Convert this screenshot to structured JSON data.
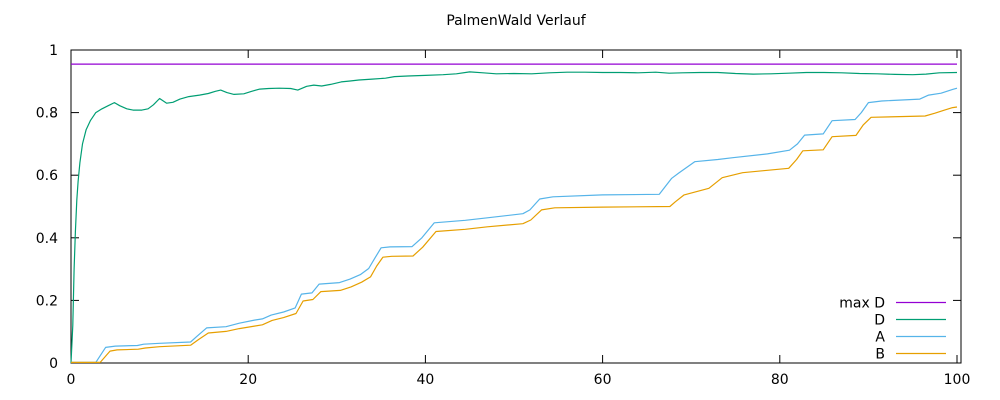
{
  "chart_data": {
    "type": "line",
    "title": "PalmenWald Verlauf",
    "xlabel": "",
    "ylabel": "",
    "xlim": [
      0,
      100
    ],
    "ylim": [
      0,
      1
    ],
    "grid": false,
    "legend_position": "inside-bottom-right",
    "background_color": "#ffffff",
    "axis_color": "#000000",
    "xticks": [
      {
        "v": 0,
        "label": "0"
      },
      {
        "v": 20,
        "label": "20"
      },
      {
        "v": 40,
        "label": "40"
      },
      {
        "v": 60,
        "label": "60"
      },
      {
        "v": 80,
        "label": "80"
      },
      {
        "v": 100,
        "label": "100"
      }
    ],
    "yticks": [
      {
        "v": 0,
        "label": "0"
      },
      {
        "v": 0.2,
        "label": "0.2"
      },
      {
        "v": 0.4,
        "label": "0.4"
      },
      {
        "v": 0.6,
        "label": "0.6"
      },
      {
        "v": 0.8,
        "label": "0.8"
      },
      {
        "v": 1,
        "label": "1"
      }
    ],
    "series": [
      {
        "name": "max D",
        "color": "#9400d3",
        "points": [
          [
            0,
            0.955
          ],
          [
            100,
            0.955
          ]
        ]
      },
      {
        "name": "D",
        "color": "#009e73",
        "points": [
          [
            0,
            0
          ],
          [
            0.2,
            0.12
          ],
          [
            0.35,
            0.3
          ],
          [
            0.5,
            0.42
          ],
          [
            0.65,
            0.52
          ],
          [
            0.8,
            0.58
          ],
          [
            1.0,
            0.64
          ],
          [
            1.3,
            0.7
          ],
          [
            1.7,
            0.745
          ],
          [
            2.2,
            0.775
          ],
          [
            2.8,
            0.8
          ],
          [
            3.5,
            0.812
          ],
          [
            4.2,
            0.822
          ],
          [
            4.9,
            0.832
          ],
          [
            5.5,
            0.822
          ],
          [
            6.3,
            0.812
          ],
          [
            7,
            0.808
          ],
          [
            8,
            0.808
          ],
          [
            8.7,
            0.812
          ],
          [
            9.3,
            0.825
          ],
          [
            10,
            0.845
          ],
          [
            10.8,
            0.83
          ],
          [
            11.5,
            0.833
          ],
          [
            12.3,
            0.843
          ],
          [
            13.3,
            0.851
          ],
          [
            14.5,
            0.856
          ],
          [
            15.5,
            0.861
          ],
          [
            16.3,
            0.868
          ],
          [
            16.9,
            0.872
          ],
          [
            17.6,
            0.864
          ],
          [
            18.4,
            0.858
          ],
          [
            19.5,
            0.86
          ],
          [
            20.4,
            0.868
          ],
          [
            21.3,
            0.875
          ],
          [
            22.3,
            0.877
          ],
          [
            23.5,
            0.878
          ],
          [
            24.8,
            0.877
          ],
          [
            25.6,
            0.872
          ],
          [
            26.6,
            0.884
          ],
          [
            27.4,
            0.888
          ],
          [
            28.3,
            0.885
          ],
          [
            29.3,
            0.89
          ],
          [
            30.5,
            0.898
          ],
          [
            31.5,
            0.901
          ],
          [
            32.5,
            0.904
          ],
          [
            34,
            0.907
          ],
          [
            35.5,
            0.91
          ],
          [
            36.5,
            0.915
          ],
          [
            38,
            0.917
          ],
          [
            40,
            0.919
          ],
          [
            42,
            0.921
          ],
          [
            43.5,
            0.924
          ],
          [
            45,
            0.93
          ],
          [
            46.5,
            0.927
          ],
          [
            48,
            0.924
          ],
          [
            50,
            0.925
          ],
          [
            52,
            0.924
          ],
          [
            54,
            0.927
          ],
          [
            56,
            0.929
          ],
          [
            58,
            0.929
          ],
          [
            60,
            0.928
          ],
          [
            62,
            0.928
          ],
          [
            64,
            0.927
          ],
          [
            66,
            0.929
          ],
          [
            67.5,
            0.926
          ],
          [
            69,
            0.927
          ],
          [
            71,
            0.928
          ],
          [
            73,
            0.928
          ],
          [
            75,
            0.925
          ],
          [
            77,
            0.923
          ],
          [
            79,
            0.924
          ],
          [
            81,
            0.926
          ],
          [
            83,
            0.928
          ],
          [
            85,
            0.928
          ],
          [
            87,
            0.927
          ],
          [
            89,
            0.925
          ],
          [
            91,
            0.924
          ],
          [
            93,
            0.922
          ],
          [
            95,
            0.921
          ],
          [
            96.5,
            0.923
          ],
          [
            98,
            0.927
          ],
          [
            100,
            0.928
          ]
        ]
      },
      {
        "name": "A",
        "color": "#56b4e9",
        "points": [
          [
            0,
            0.002
          ],
          [
            2.8,
            0.002
          ],
          [
            3.9,
            0.05
          ],
          [
            5,
            0.054
          ],
          [
            7.5,
            0.056
          ],
          [
            8.2,
            0.06
          ],
          [
            10,
            0.063
          ],
          [
            13.5,
            0.067
          ],
          [
            14.2,
            0.085
          ],
          [
            15.3,
            0.112
          ],
          [
            17.5,
            0.116
          ],
          [
            19,
            0.127
          ],
          [
            20.7,
            0.137
          ],
          [
            21.6,
            0.141
          ],
          [
            22.6,
            0.153
          ],
          [
            24,
            0.163
          ],
          [
            25.3,
            0.176
          ],
          [
            26,
            0.22
          ],
          [
            27.2,
            0.224
          ],
          [
            28,
            0.252
          ],
          [
            30.3,
            0.257
          ],
          [
            31.5,
            0.268
          ],
          [
            32.7,
            0.283
          ],
          [
            33.6,
            0.302
          ],
          [
            34.3,
            0.335
          ],
          [
            35,
            0.368
          ],
          [
            36,
            0.371
          ],
          [
            38.5,
            0.372
          ],
          [
            39.6,
            0.4
          ],
          [
            41,
            0.448
          ],
          [
            44.5,
            0.456
          ],
          [
            47,
            0.464
          ],
          [
            51,
            0.477
          ],
          [
            51.8,
            0.489
          ],
          [
            52.9,
            0.524
          ],
          [
            54.4,
            0.531
          ],
          [
            60,
            0.537
          ],
          [
            66.4,
            0.539
          ],
          [
            67.8,
            0.59
          ],
          [
            68.6,
            0.607
          ],
          [
            70.4,
            0.643
          ],
          [
            73,
            0.65
          ],
          [
            74.7,
            0.656
          ],
          [
            78.6,
            0.668
          ],
          [
            81.1,
            0.68
          ],
          [
            82,
            0.7
          ],
          [
            82.8,
            0.728
          ],
          [
            84.9,
            0.732
          ],
          [
            85.9,
            0.774
          ],
          [
            88.5,
            0.778
          ],
          [
            89.2,
            0.8
          ],
          [
            90,
            0.832
          ],
          [
            91.5,
            0.837
          ],
          [
            95.8,
            0.843
          ],
          [
            96.8,
            0.856
          ],
          [
            98.2,
            0.862
          ],
          [
            99.5,
            0.874
          ],
          [
            100,
            0.878
          ]
        ]
      },
      {
        "name": "B",
        "color": "#e69f00",
        "points": [
          [
            0,
            0.002
          ],
          [
            3.3,
            0.002
          ],
          [
            4.4,
            0.038
          ],
          [
            5.2,
            0.042
          ],
          [
            7.6,
            0.044
          ],
          [
            8.4,
            0.048
          ],
          [
            10,
            0.052
          ],
          [
            13.5,
            0.057
          ],
          [
            14.4,
            0.075
          ],
          [
            15.5,
            0.096
          ],
          [
            17.5,
            0.101
          ],
          [
            19,
            0.11
          ],
          [
            20.7,
            0.118
          ],
          [
            21.6,
            0.122
          ],
          [
            22.7,
            0.136
          ],
          [
            24,
            0.145
          ],
          [
            25.4,
            0.158
          ],
          [
            26.2,
            0.198
          ],
          [
            27.3,
            0.203
          ],
          [
            28.2,
            0.228
          ],
          [
            30.4,
            0.232
          ],
          [
            31.6,
            0.243
          ],
          [
            32.8,
            0.258
          ],
          [
            33.8,
            0.275
          ],
          [
            34.5,
            0.31
          ],
          [
            35.2,
            0.338
          ],
          [
            36.2,
            0.341
          ],
          [
            38.6,
            0.342
          ],
          [
            39.7,
            0.37
          ],
          [
            41.2,
            0.42
          ],
          [
            44.5,
            0.427
          ],
          [
            47,
            0.435
          ],
          [
            51,
            0.445
          ],
          [
            51.9,
            0.457
          ],
          [
            53.1,
            0.489
          ],
          [
            54.6,
            0.496
          ],
          [
            60,
            0.498
          ],
          [
            67.6,
            0.5
          ],
          [
            68.2,
            0.515
          ],
          [
            69.2,
            0.537
          ],
          [
            72,
            0.558
          ],
          [
            73.5,
            0.592
          ],
          [
            75.8,
            0.608
          ],
          [
            78,
            0.614
          ],
          [
            81,
            0.622
          ],
          [
            81.9,
            0.65
          ],
          [
            82.6,
            0.678
          ],
          [
            84.9,
            0.681
          ],
          [
            85.9,
            0.723
          ],
          [
            88.6,
            0.727
          ],
          [
            89.4,
            0.76
          ],
          [
            90.3,
            0.785
          ],
          [
            96.4,
            0.789
          ],
          [
            97.5,
            0.798
          ],
          [
            98.6,
            0.808
          ],
          [
            99.5,
            0.816
          ],
          [
            100,
            0.818
          ]
        ]
      }
    ]
  }
}
